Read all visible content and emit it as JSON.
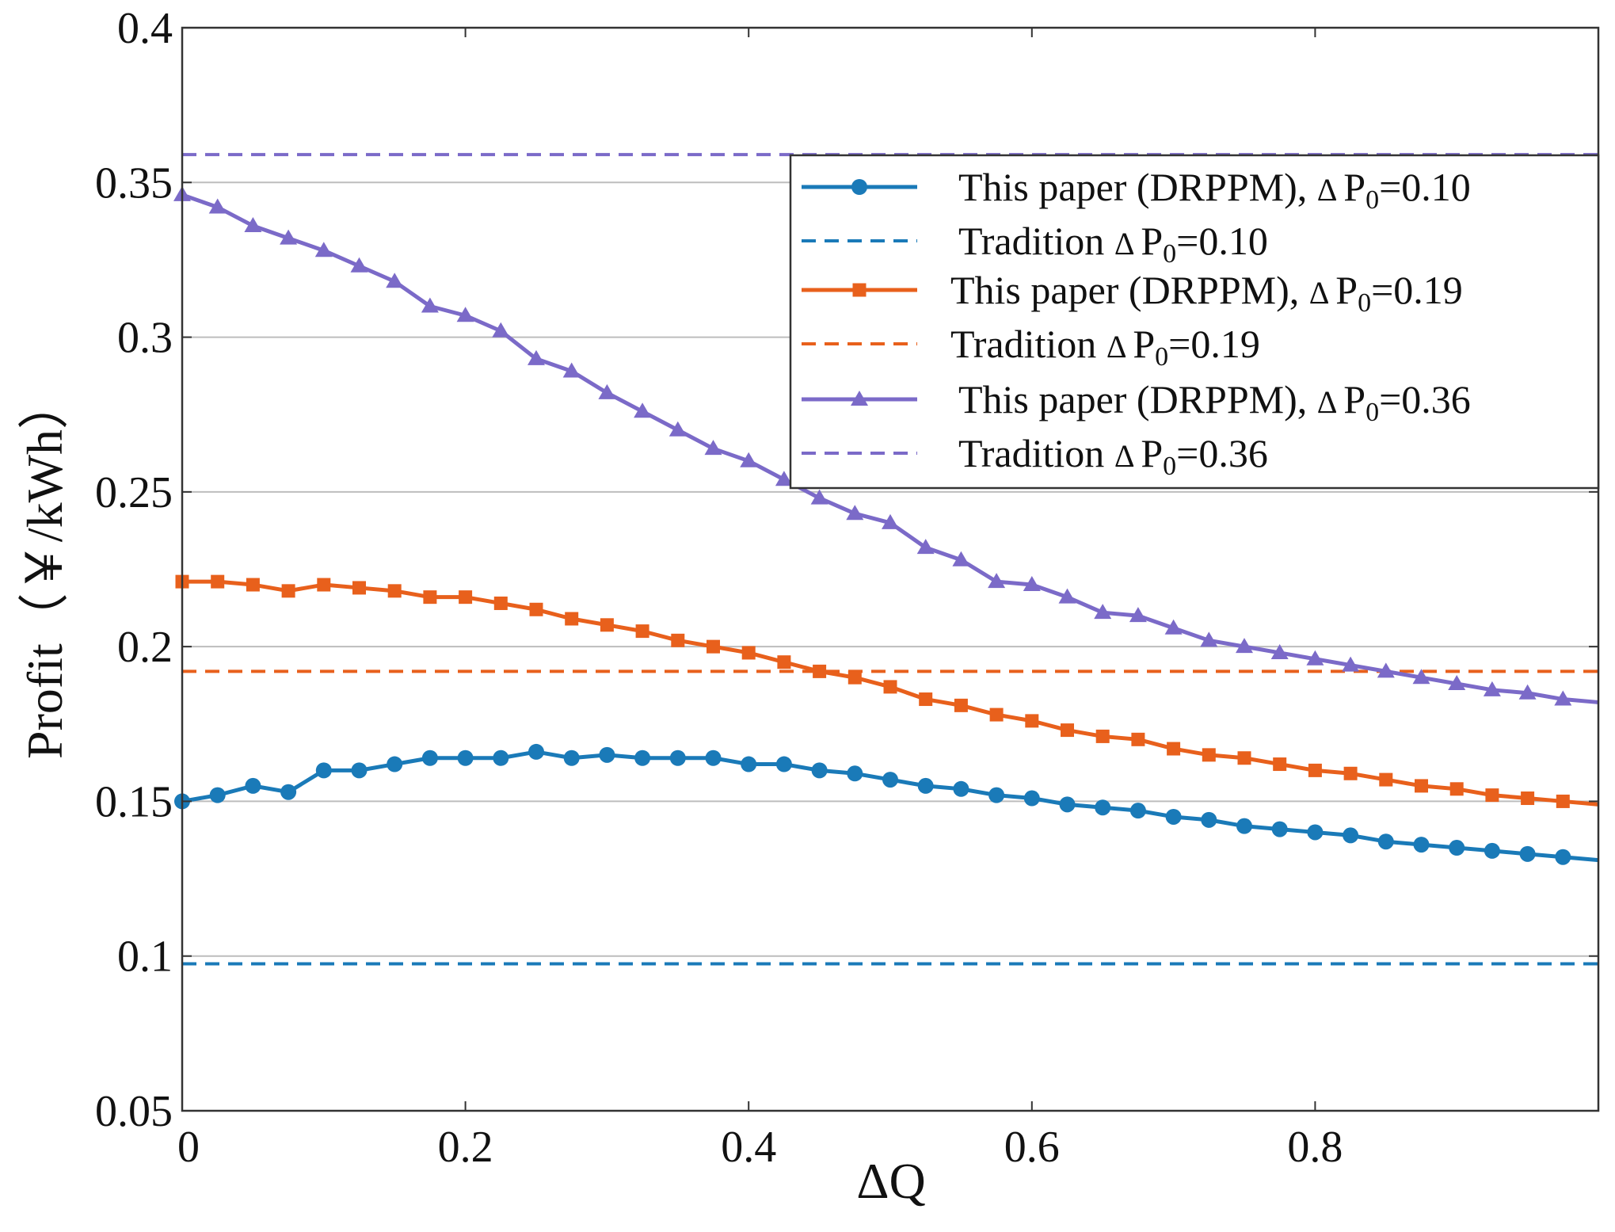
{
  "chart_data": {
    "type": "line",
    "title": "",
    "xlabel": "ΔQ",
    "ylabel": "Profit（￥/kWh）",
    "xlim": [
      0,
      1.0
    ],
    "ylim": [
      0.05,
      0.4
    ],
    "xticks": [
      0,
      0.2,
      0.4,
      0.6,
      0.8
    ],
    "xtick_labels": [
      "0",
      "0.2",
      "0.4",
      "0.6",
      "0.8"
    ],
    "yticks": [
      0.05,
      0.1,
      0.15,
      0.2,
      0.25,
      0.3,
      0.35,
      0.4
    ],
    "ytick_labels": [
      "0.05",
      "0.1",
      "0.15",
      "0.2",
      "0.25",
      "0.3",
      "0.35",
      "0.4"
    ],
    "grid": "horizontal",
    "legend_position": "top-right",
    "x": [
      0,
      0.025,
      0.05,
      0.075,
      0.1,
      0.125,
      0.15,
      0.175,
      0.2,
      0.225,
      0.25,
      0.275,
      0.3,
      0.325,
      0.35,
      0.375,
      0.4,
      0.425,
      0.45,
      0.475,
      0.5,
      0.525,
      0.55,
      0.575,
      0.6,
      0.625,
      0.65,
      0.675,
      0.7,
      0.725,
      0.75,
      0.775,
      0.8,
      0.825,
      0.85,
      0.875,
      0.9,
      0.925,
      0.95,
      0.975
    ],
    "x_end": 1.0,
    "series": [
      {
        "name": "This paper (DRPPM), ",
        "delta": "Δ",
        "p": "P",
        "sub": "0",
        "eq": "=0.10",
        "style": "solid",
        "marker": "circle",
        "color": "#1a7ab8",
        "values": [
          0.15,
          0.152,
          0.155,
          0.153,
          0.16,
          0.16,
          0.162,
          0.164,
          0.164,
          0.164,
          0.166,
          0.164,
          0.165,
          0.164,
          0.164,
          0.164,
          0.162,
          0.162,
          0.16,
          0.159,
          0.157,
          0.155,
          0.154,
          0.152,
          0.151,
          0.149,
          0.148,
          0.147,
          0.145,
          0.144,
          0.142,
          0.141,
          0.14,
          0.139,
          0.137,
          0.136,
          0.135,
          0.134,
          0.133,
          0.132
        ],
        "end_value": 0.131
      },
      {
        "name": "Tradition ",
        "delta": "Δ",
        "p": "P",
        "sub": "0",
        "eq": "=0.10",
        "style": "dashed",
        "marker": "none",
        "color": "#1a7ab8",
        "constant": 0.0975
      },
      {
        "name": "This paper (DRPPM), ",
        "delta": "Δ",
        "p": "P",
        "sub": "0",
        "eq": "=0.19",
        "style": "solid",
        "marker": "square",
        "color": "#e8601c",
        "values": [
          0.221,
          0.221,
          0.22,
          0.218,
          0.22,
          0.219,
          0.218,
          0.216,
          0.216,
          0.214,
          0.212,
          0.209,
          0.207,
          0.205,
          0.202,
          0.2,
          0.198,
          0.195,
          0.192,
          0.19,
          0.187,
          0.183,
          0.181,
          0.178,
          0.176,
          0.173,
          0.171,
          0.17,
          0.167,
          0.165,
          0.164,
          0.162,
          0.16,
          0.159,
          0.157,
          0.155,
          0.154,
          0.152,
          0.151,
          0.15
        ],
        "end_value": 0.149
      },
      {
        "name": "Tradition ",
        "delta": "Δ",
        "p": "P",
        "sub": "0",
        "eq": "=0.19",
        "style": "dashed",
        "marker": "none",
        "color": "#e8601c",
        "constant": 0.192
      },
      {
        "name": "This paper (DRPPM), ",
        "delta": "Δ",
        "p": "P",
        "sub": "0",
        "eq": "=0.36",
        "style": "solid",
        "marker": "triangle",
        "color": "#7b6ac8",
        "values": [
          0.346,
          0.342,
          0.336,
          0.332,
          0.328,
          0.323,
          0.318,
          0.31,
          0.307,
          0.302,
          0.293,
          0.289,
          0.282,
          0.276,
          0.27,
          0.264,
          0.26,
          0.254,
          0.248,
          0.243,
          0.24,
          0.232,
          0.228,
          0.221,
          0.22,
          0.216,
          0.211,
          0.21,
          0.206,
          0.202,
          0.2,
          0.198,
          0.196,
          0.194,
          0.192,
          0.19,
          0.188,
          0.186,
          0.185,
          0.183
        ],
        "end_value": 0.182
      },
      {
        "name": "Tradition ",
        "delta": "Δ",
        "p": "P",
        "sub": "0",
        "eq": "=0.36",
        "style": "dashed",
        "marker": "none",
        "color": "#7b6ac8",
        "constant": 0.359
      }
    ]
  }
}
